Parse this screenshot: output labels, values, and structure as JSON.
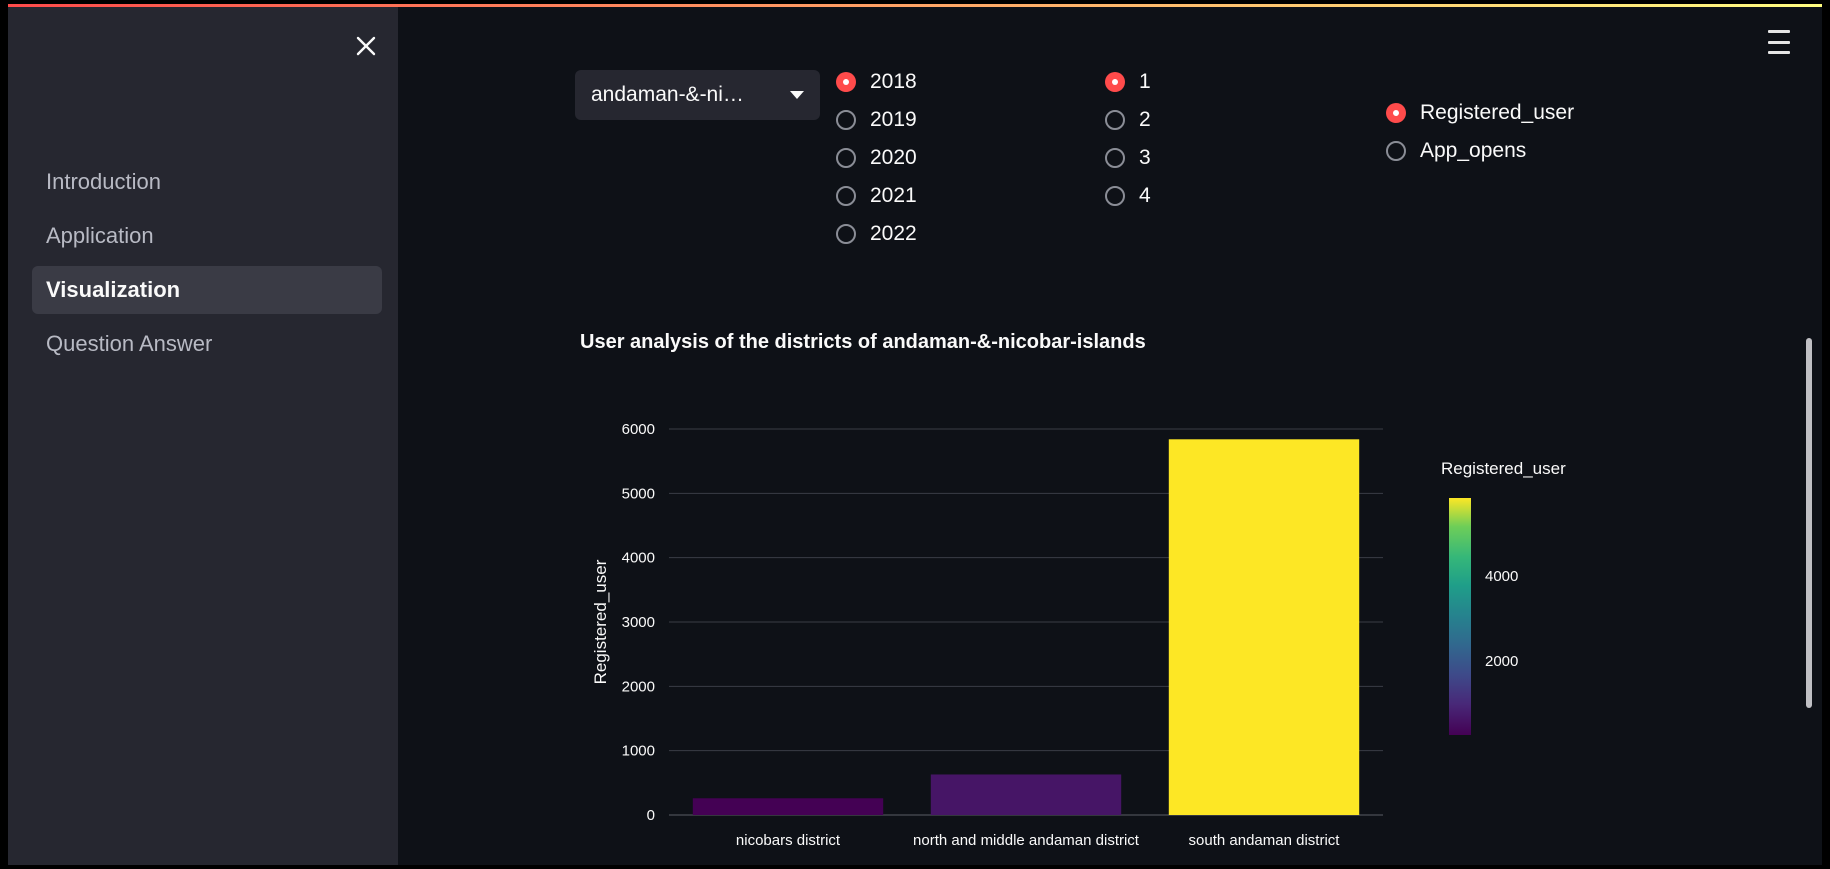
{
  "sidebar": {
    "items": [
      {
        "label": "Introduction",
        "active": false
      },
      {
        "label": "Application",
        "active": false
      },
      {
        "label": "Visualization",
        "active": true
      },
      {
        "label": "Question Answer",
        "active": false
      }
    ]
  },
  "state_select": {
    "value": "andaman-&-ni…"
  },
  "year_radio": {
    "options": [
      "2018",
      "2019",
      "2020",
      "2021",
      "2022"
    ],
    "selected": "2018"
  },
  "quarter_radio": {
    "options": [
      "1",
      "2",
      "3",
      "4"
    ],
    "selected": "1"
  },
  "metric_radio": {
    "options": [
      "Registered_user",
      "App_opens"
    ],
    "selected": "Registered_user"
  },
  "colors": {
    "accent": "#ff4b4b",
    "sidebar_bg": "#262730",
    "main_bg": "#0e1117"
  },
  "chart_data": {
    "type": "bar",
    "title": "User analysis of the districts of andaman-&-nicobar-islands",
    "xlabel": "",
    "ylabel": "Registered_user",
    "categories": [
      "nicobars district",
      "north and middle andaman district",
      "south andaman district"
    ],
    "values": [
      260,
      630,
      5840
    ],
    "ylim": [
      0,
      6000
    ],
    "yticks": [
      "0",
      "1000",
      "2000",
      "3000",
      "4000",
      "5000",
      "6000"
    ],
    "grid": true,
    "colorscale": "viridis",
    "colorbar": {
      "title": "Registered_user",
      "ticks": [
        "2000",
        "4000"
      ]
    }
  }
}
